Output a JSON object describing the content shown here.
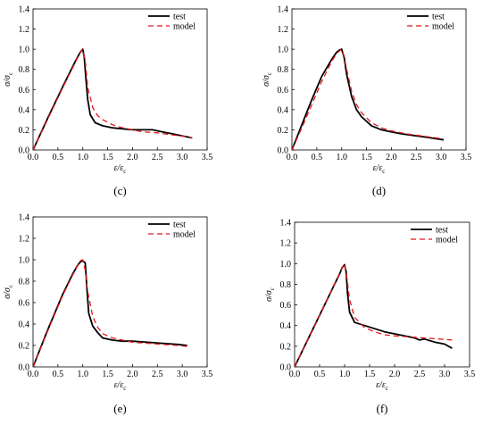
{
  "chart_data": [
    {
      "type": "line",
      "panel_label": "(c)",
      "xlabel": "ε/ε",
      "xlabel_sub": "c",
      "ylabel": "σ/σ",
      "ylabel_sub": "c",
      "xlim": [
        0.0,
        3.5
      ],
      "ylim": [
        0.0,
        1.4
      ],
      "xticks": [
        "0.0",
        "0.5",
        "1.0",
        "1.5",
        "2.0",
        "2.5",
        "3.0",
        "3.5"
      ],
      "yticks": [
        "0.0",
        "0.2",
        "0.4",
        "0.6",
        "0.8",
        "1.0",
        "1.2",
        "1.4"
      ],
      "grid": false,
      "legend": "top-right",
      "series": [
        {
          "name": "test",
          "color": "#000000",
          "style": "solid",
          "x": [
            0,
            0.3,
            0.6,
            0.85,
            0.95,
            1.0,
            1.03,
            1.06,
            1.1,
            1.15,
            1.25,
            1.4,
            1.6,
            1.8,
            2.0,
            2.2,
            2.4,
            2.6,
            2.8,
            3.0,
            3.2
          ],
          "y": [
            0,
            0.32,
            0.63,
            0.88,
            0.97,
            1.0,
            0.92,
            0.72,
            0.5,
            0.35,
            0.27,
            0.24,
            0.22,
            0.21,
            0.2,
            0.2,
            0.2,
            0.18,
            0.16,
            0.14,
            0.12
          ]
        },
        {
          "name": "model",
          "color": "#e8161c",
          "style": "dashed",
          "x": [
            0,
            0.3,
            0.6,
            0.85,
            0.95,
            1.0,
            1.05,
            1.1,
            1.2,
            1.3,
            1.4,
            1.6,
            1.8,
            2.0,
            2.2,
            2.5,
            2.8,
            3.1,
            3.2
          ],
          "y": [
            0,
            0.31,
            0.62,
            0.87,
            0.97,
            1.0,
            0.88,
            0.62,
            0.42,
            0.34,
            0.3,
            0.25,
            0.22,
            0.2,
            0.18,
            0.17,
            0.15,
            0.13,
            0.12
          ]
        }
      ]
    },
    {
      "type": "line",
      "panel_label": "(d)",
      "xlabel": "ε/ε",
      "xlabel_sub": "c",
      "ylabel": "σ/σ",
      "ylabel_sub": "c",
      "xlim": [
        0.0,
        3.5
      ],
      "ylim": [
        0.0,
        1.4
      ],
      "xticks": [
        "0.0",
        "0.5",
        "1.0",
        "1.5",
        "2.0",
        "2.5",
        "3.0",
        "3.5"
      ],
      "yticks": [
        "0.0",
        "0.2",
        "0.4",
        "0.6",
        "0.8",
        "1.0",
        "1.2",
        "1.4"
      ],
      "grid": false,
      "legend": "top-right",
      "series": [
        {
          "name": "test",
          "color": "#000000",
          "style": "solid",
          "x": [
            0,
            0.2,
            0.4,
            0.6,
            0.8,
            0.9,
            0.95,
            1.0,
            1.05,
            1.1,
            1.2,
            1.3,
            1.4,
            1.6,
            1.8,
            2.0,
            2.2,
            2.5,
            2.8,
            3.05
          ],
          "y": [
            0,
            0.25,
            0.5,
            0.73,
            0.9,
            0.97,
            0.99,
            1.0,
            0.92,
            0.75,
            0.53,
            0.4,
            0.33,
            0.24,
            0.2,
            0.18,
            0.16,
            0.14,
            0.12,
            0.1
          ]
        },
        {
          "name": "model",
          "color": "#e8161c",
          "style": "dashed",
          "x": [
            0,
            0.2,
            0.4,
            0.6,
            0.8,
            0.9,
            1.0,
            1.05,
            1.1,
            1.2,
            1.3,
            1.4,
            1.6,
            1.8,
            2.0,
            2.3,
            2.6,
            2.9,
            3.05
          ],
          "y": [
            0,
            0.22,
            0.45,
            0.68,
            0.88,
            0.96,
            1.0,
            0.93,
            0.8,
            0.58,
            0.45,
            0.37,
            0.27,
            0.22,
            0.19,
            0.16,
            0.14,
            0.12,
            0.11
          ]
        }
      ]
    },
    {
      "type": "line",
      "panel_label": "(e)",
      "xlabel": "ε/ε",
      "xlabel_sub": "c",
      "ylabel": "σ/σ",
      "ylabel_sub": "c",
      "xlim": [
        0.0,
        3.5
      ],
      "ylim": [
        0.0,
        1.4
      ],
      "xticks": [
        "0.0",
        "0.5",
        "1.0",
        "1.5",
        "2.0",
        "2.5",
        "3.0",
        "3.5"
      ],
      "yticks": [
        "0.0",
        "0.2",
        "0.4",
        "0.6",
        "0.8",
        "1.0",
        "1.2",
        "1.4"
      ],
      "grid": false,
      "legend": "top-right",
      "series": [
        {
          "name": "test",
          "color": "#000000",
          "style": "solid",
          "x": [
            0,
            0.3,
            0.6,
            0.8,
            0.9,
            0.95,
            1.0,
            1.05,
            1.08,
            1.12,
            1.2,
            1.3,
            1.4,
            1.6,
            1.8,
            2.0,
            2.3,
            2.6,
            2.9,
            3.1
          ],
          "y": [
            0,
            0.35,
            0.68,
            0.87,
            0.95,
            0.98,
            0.99,
            0.97,
            0.75,
            0.5,
            0.38,
            0.32,
            0.27,
            0.25,
            0.24,
            0.24,
            0.23,
            0.22,
            0.21,
            0.2
          ]
        },
        {
          "name": "model",
          "color": "#e8161c",
          "style": "dashed",
          "x": [
            0,
            0.3,
            0.6,
            0.8,
            0.9,
            0.95,
            1.0,
            1.05,
            1.1,
            1.2,
            1.3,
            1.4,
            1.6,
            1.8,
            2.0,
            2.3,
            2.6,
            2.9,
            3.1
          ],
          "y": [
            0,
            0.34,
            0.67,
            0.86,
            0.95,
            0.99,
            1.0,
            0.9,
            0.7,
            0.47,
            0.37,
            0.31,
            0.27,
            0.25,
            0.23,
            0.22,
            0.21,
            0.2,
            0.19
          ]
        }
      ]
    },
    {
      "type": "line",
      "panel_label": "(f)",
      "xlabel": "ε/ε",
      "xlabel_sub": "c",
      "ylabel": "σ/σ",
      "ylabel_sub": "c",
      "xlim": [
        0.0,
        3.5
      ],
      "ylim": [
        0.0,
        1.4
      ],
      "xticks": [
        "0.0",
        "0.5",
        "1.0",
        "1.5",
        "2.0",
        "2.5",
        "3.0",
        "3.5"
      ],
      "yticks": [
        "0.0",
        "0.2",
        "0.4",
        "0.6",
        "0.8",
        "1.0",
        "1.2",
        "1.4"
      ],
      "grid": false,
      "legend": "top-right",
      "series": [
        {
          "name": "test",
          "color": "#000000",
          "style": "solid",
          "x": [
            0,
            0.3,
            0.6,
            0.8,
            0.9,
            0.95,
            1.0,
            1.03,
            1.06,
            1.1,
            1.2,
            1.4,
            1.6,
            1.8,
            2.0,
            2.2,
            2.4,
            2.5,
            2.6,
            2.8,
            3.0,
            3.15
          ],
          "y": [
            0,
            0.3,
            0.6,
            0.8,
            0.9,
            0.96,
            0.99,
            0.92,
            0.7,
            0.53,
            0.43,
            0.4,
            0.37,
            0.34,
            0.32,
            0.3,
            0.28,
            0.26,
            0.27,
            0.24,
            0.22,
            0.18
          ]
        },
        {
          "name": "model",
          "color": "#e8161c",
          "style": "dashed",
          "x": [
            0,
            0.3,
            0.6,
            0.8,
            0.9,
            0.95,
            1.0,
            1.05,
            1.1,
            1.2,
            1.4,
            1.6,
            1.8,
            2.0,
            2.3,
            2.6,
            2.9,
            3.15
          ],
          "y": [
            0,
            0.3,
            0.6,
            0.8,
            0.9,
            0.96,
            1.0,
            0.85,
            0.65,
            0.48,
            0.38,
            0.34,
            0.31,
            0.3,
            0.29,
            0.28,
            0.27,
            0.26
          ]
        }
      ]
    }
  ]
}
